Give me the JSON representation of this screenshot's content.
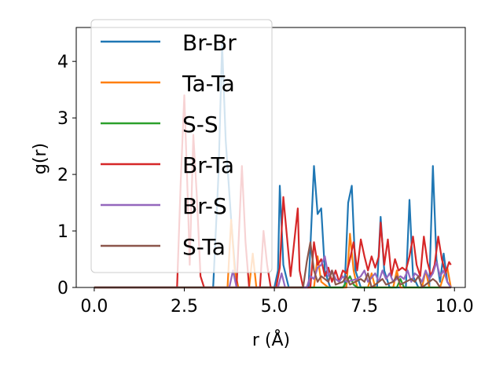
{
  "chart_data": {
    "type": "line",
    "title": "",
    "xlabel": "r (Å)",
    "ylabel": "g(r)",
    "xlim": [
      -0.5,
      10.3
    ],
    "ylim": [
      0,
      4.6
    ],
    "xticks": [
      0.0,
      2.5,
      5.0,
      7.5,
      10.0
    ],
    "xtick_labels": [
      "0.0",
      "2.5",
      "5.0",
      "7.5",
      "10.0"
    ],
    "yticks": [
      0,
      1,
      2,
      3,
      4
    ],
    "ytick_labels": [
      "0",
      "1",
      "2",
      "3",
      "4"
    ],
    "grid": false,
    "legend_position": "upper-left",
    "series": [
      {
        "name": "Br-Br",
        "color": "#1f77b4",
        "points": [
          [
            0,
            0
          ],
          [
            3.3,
            0
          ],
          [
            3.45,
            2.0
          ],
          [
            3.55,
            4.3
          ],
          [
            3.65,
            2.6
          ],
          [
            3.8,
            1.2
          ],
          [
            3.95,
            0
          ],
          [
            5.0,
            0
          ],
          [
            5.1,
            0.3
          ],
          [
            5.15,
            1.8
          ],
          [
            5.25,
            0.4
          ],
          [
            5.4,
            0
          ],
          [
            5.95,
            0
          ],
          [
            6.1,
            2.15
          ],
          [
            6.2,
            1.3
          ],
          [
            6.3,
            1.4
          ],
          [
            6.4,
            0.3
          ],
          [
            6.55,
            0
          ],
          [
            6.95,
            0
          ],
          [
            7.05,
            1.5
          ],
          [
            7.15,
            1.8
          ],
          [
            7.25,
            0.3
          ],
          [
            7.4,
            0
          ],
          [
            7.85,
            0
          ],
          [
            7.95,
            1.25
          ],
          [
            8.05,
            0.3
          ],
          [
            8.2,
            0
          ],
          [
            8.65,
            0
          ],
          [
            8.75,
            1.55
          ],
          [
            8.85,
            0.2
          ],
          [
            9.0,
            0
          ],
          [
            9.3,
            0
          ],
          [
            9.4,
            2.15
          ],
          [
            9.5,
            0.5
          ],
          [
            9.6,
            0.1
          ],
          [
            9.7,
            0.6
          ],
          [
            9.8,
            0.1
          ],
          [
            9.9,
            0
          ]
        ]
      },
      {
        "name": "Ta-Ta",
        "color": "#ff7f0e",
        "points": [
          [
            0,
            0
          ],
          [
            3.7,
            0
          ],
          [
            3.8,
            1.2
          ],
          [
            3.9,
            0.3
          ],
          [
            4.0,
            0
          ],
          [
            4.3,
            0
          ],
          [
            4.4,
            0.6
          ],
          [
            4.5,
            0
          ],
          [
            6.1,
            0
          ],
          [
            6.2,
            0.55
          ],
          [
            6.3,
            0.1
          ],
          [
            6.5,
            0
          ],
          [
            7.0,
            0
          ],
          [
            7.1,
            0.95
          ],
          [
            7.2,
            0.3
          ],
          [
            7.3,
            0
          ],
          [
            7.6,
            0
          ],
          [
            7.7,
            0.25
          ],
          [
            7.8,
            0
          ],
          [
            8.3,
            0
          ],
          [
            8.4,
            0.3
          ],
          [
            8.5,
            0
          ],
          [
            9.1,
            0
          ],
          [
            9.2,
            0.3
          ],
          [
            9.3,
            0
          ],
          [
            9.6,
            0
          ],
          [
            9.7,
            0.2
          ],
          [
            9.8,
            0.35
          ],
          [
            9.9,
            0
          ]
        ]
      },
      {
        "name": "S-S",
        "color": "#2ca02c",
        "points": [
          [
            0,
            0
          ],
          [
            6.9,
            0
          ],
          [
            7.0,
            0.1
          ],
          [
            7.1,
            0.2
          ],
          [
            7.2,
            0.05
          ],
          [
            7.3,
            0
          ],
          [
            8.4,
            0
          ],
          [
            8.5,
            0.15
          ],
          [
            8.6,
            0
          ],
          [
            9.9,
            0
          ]
        ]
      },
      {
        "name": "Br-Ta",
        "color": "#d62728",
        "points": [
          [
            0,
            0
          ],
          [
            2.3,
            0
          ],
          [
            2.4,
            1.85
          ],
          [
            2.5,
            3.4
          ],
          [
            2.6,
            1.5
          ],
          [
            2.65,
            0.4
          ],
          [
            2.75,
            2.7
          ],
          [
            2.85,
            1.6
          ],
          [
            2.95,
            0.2
          ],
          [
            3.05,
            0
          ],
          [
            3.95,
            0
          ],
          [
            4.1,
            2.15
          ],
          [
            4.2,
            0.8
          ],
          [
            4.3,
            0
          ],
          [
            4.6,
            0
          ],
          [
            4.7,
            1.0
          ],
          [
            4.8,
            0.4
          ],
          [
            4.9,
            0
          ],
          [
            5.05,
            0
          ],
          [
            5.15,
            0.35
          ],
          [
            5.25,
            1.6
          ],
          [
            5.35,
            0.9
          ],
          [
            5.45,
            0.2
          ],
          [
            5.55,
            0.8
          ],
          [
            5.65,
            1.4
          ],
          [
            5.7,
            0.3
          ],
          [
            5.8,
            0
          ],
          [
            6.0,
            0
          ],
          [
            6.1,
            0.8
          ],
          [
            6.2,
            0.4
          ],
          [
            6.3,
            0.5
          ],
          [
            6.4,
            0.2
          ],
          [
            6.5,
            0.35
          ],
          [
            6.6,
            0.1
          ],
          [
            6.7,
            0.3
          ],
          [
            6.8,
            0.1
          ],
          [
            6.9,
            0.3
          ],
          [
            7.0,
            0.25
          ],
          [
            7.1,
            0.5
          ],
          [
            7.2,
            0.8
          ],
          [
            7.3,
            0.3
          ],
          [
            7.4,
            0.85
          ],
          [
            7.5,
            0.55
          ],
          [
            7.6,
            0.3
          ],
          [
            7.7,
            0.55
          ],
          [
            7.8,
            0.35
          ],
          [
            7.9,
            0.55
          ],
          [
            7.95,
            1.15
          ],
          [
            8.05,
            0.4
          ],
          [
            8.15,
            0.85
          ],
          [
            8.25,
            0.2
          ],
          [
            8.35,
            0.5
          ],
          [
            8.45,
            0.3
          ],
          [
            8.55,
            0.35
          ],
          [
            8.65,
            0.3
          ],
          [
            8.75,
            0.55
          ],
          [
            8.85,
            0.9
          ],
          [
            8.95,
            0.4
          ],
          [
            9.05,
            0.2
          ],
          [
            9.15,
            0.9
          ],
          [
            9.25,
            0.45
          ],
          [
            9.35,
            0.2
          ],
          [
            9.45,
            0.4
          ],
          [
            9.55,
            0.9
          ],
          [
            9.65,
            0.5
          ],
          [
            9.75,
            0.25
          ],
          [
            9.85,
            0.45
          ],
          [
            9.9,
            0.4
          ]
        ]
      },
      {
        "name": "Br-S",
        "color": "#9467bd",
        "points": [
          [
            0,
            0
          ],
          [
            3.75,
            0
          ],
          [
            3.85,
            0.3
          ],
          [
            3.95,
            0
          ],
          [
            5.1,
            0
          ],
          [
            5.2,
            0.25
          ],
          [
            5.3,
            0
          ],
          [
            5.9,
            0
          ],
          [
            6.0,
            0.2
          ],
          [
            6.1,
            0.15
          ],
          [
            6.2,
            0.35
          ],
          [
            6.3,
            0.4
          ],
          [
            6.4,
            0.55
          ],
          [
            6.5,
            0.2
          ],
          [
            6.6,
            0.3
          ],
          [
            6.7,
            0.15
          ],
          [
            6.8,
            0.1
          ],
          [
            6.9,
            0.2
          ],
          [
            7.0,
            0.1
          ],
          [
            7.3,
            0.15
          ],
          [
            7.4,
            0.2
          ],
          [
            7.5,
            0.3
          ],
          [
            7.6,
            0.1
          ],
          [
            7.8,
            0.25
          ],
          [
            7.9,
            0.1
          ],
          [
            8.0,
            0.3
          ],
          [
            8.1,
            0.15
          ],
          [
            8.2,
            0.25
          ],
          [
            8.3,
            0.1
          ],
          [
            8.5,
            0.2
          ],
          [
            8.6,
            0.15
          ],
          [
            8.7,
            0.3
          ],
          [
            8.8,
            0.1
          ],
          [
            8.9,
            0.25
          ],
          [
            9.0,
            0.2
          ],
          [
            9.1,
            0.1
          ],
          [
            9.2,
            0.3
          ],
          [
            9.3,
            0.15
          ],
          [
            9.4,
            0.25
          ],
          [
            9.5,
            0.45
          ],
          [
            9.6,
            0.2
          ],
          [
            9.7,
            0.3
          ],
          [
            9.8,
            0.1
          ],
          [
            9.9,
            0
          ]
        ]
      },
      {
        "name": "S-Ta",
        "color": "#8c564b",
        "points": [
          [
            0,
            0
          ],
          [
            5.8,
            0
          ],
          [
            5.9,
            0.45
          ],
          [
            6.0,
            0.8
          ],
          [
            6.1,
            0.3
          ],
          [
            6.2,
            0.1
          ],
          [
            6.3,
            0.2
          ],
          [
            6.5,
            0.1
          ],
          [
            6.6,
            0.3
          ],
          [
            6.7,
            0.05
          ],
          [
            6.9,
            0.1
          ],
          [
            7.0,
            0.2
          ],
          [
            7.1,
            0.05
          ],
          [
            7.4,
            0.15
          ],
          [
            7.5,
            0.1
          ],
          [
            7.6,
            0.25
          ],
          [
            7.7,
            0
          ],
          [
            8.0,
            0.15
          ],
          [
            8.1,
            0.05
          ],
          [
            8.3,
            0.1
          ],
          [
            8.4,
            0.2
          ],
          [
            8.5,
            0.05
          ],
          [
            8.8,
            0.15
          ],
          [
            8.9,
            0.1
          ],
          [
            9.0,
            0.2
          ],
          [
            9.1,
            0
          ],
          [
            9.4,
            0.15
          ],
          [
            9.5,
            0.1
          ],
          [
            9.6,
            0
          ],
          [
            9.9,
            0
          ]
        ]
      }
    ]
  }
}
